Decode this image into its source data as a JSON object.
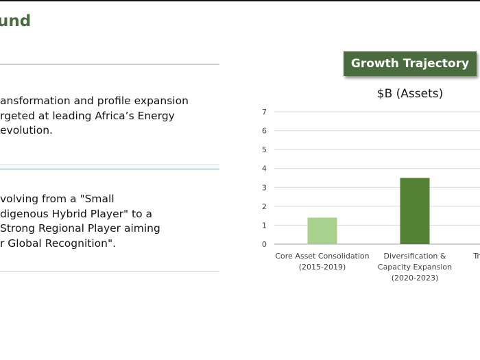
{
  "slide": {
    "heading": "und",
    "paragraph1": [
      "ansformation and profile expansion",
      "rgeted at leading Africa’s Energy",
      "evolution."
    ],
    "paragraph2": [
      "volving from a \"Small",
      "digenous Hybrid Player\" to a",
      "Strong Regional Player aiming",
      "r Global Recognition\"."
    ],
    "badge_label": "Growth Trajectory",
    "colors": {
      "heading": "#4a6b3d",
      "badge": "#4a6b3d",
      "bar_light": "#a9d18e",
      "bar_dark": "#548235"
    }
  },
  "chart_data": {
    "type": "bar",
    "title": "$B (Assets)",
    "categories": [
      [
        "Core Asset Consolidation",
        "(2015-2019)"
      ],
      [
        "Diversification &",
        "Capacity Expansion",
        "(2020-2023)"
      ],
      [
        "Tran"
      ]
    ],
    "values": [
      1.4,
      3.5,
      null
    ],
    "bar_colors": [
      "#a9d18e",
      "#548235",
      null
    ],
    "ylim": [
      0,
      7
    ],
    "yticks": [
      0,
      1,
      2,
      3,
      4,
      5,
      6,
      7
    ],
    "grid": true,
    "xlabel": "",
    "ylabel": ""
  }
}
